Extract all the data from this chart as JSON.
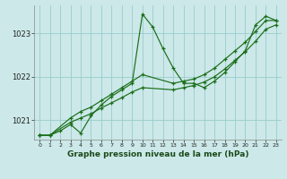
{
  "title": "Graphe pression niveau de la mer (hPa)",
  "background_color": "#cce8e8",
  "grid_color": "#99cccc",
  "line_color": "#1a6e1a",
  "xlim": [
    -0.5,
    23.5
  ],
  "ylim": [
    1020.55,
    1023.65
  ],
  "yticks": [
    1021,
    1022,
    1023
  ],
  "xticks": [
    0,
    1,
    2,
    3,
    4,
    5,
    6,
    7,
    8,
    9,
    10,
    11,
    12,
    13,
    14,
    15,
    16,
    17,
    18,
    19,
    20,
    21,
    22,
    23
  ],
  "series": [
    {
      "x": [
        0,
        1,
        2,
        3,
        4,
        5,
        6,
        7,
        8,
        9,
        10,
        11,
        12,
        13,
        14,
        15,
        16,
        17,
        18,
        19,
        20,
        21,
        22,
        23
      ],
      "y": [
        1020.65,
        1020.65,
        1020.75,
        1020.9,
        1020.7,
        1021.1,
        1021.35,
        1021.55,
        1021.7,
        1021.85,
        1023.45,
        1023.15,
        1022.65,
        1022.2,
        1021.85,
        1021.85,
        1021.75,
        1021.9,
        1022.1,
        1022.35,
        1022.6,
        1023.2,
        1023.4,
        1023.3
      ]
    },
    {
      "x": [
        0,
        1,
        3,
        4,
        5,
        6,
        7,
        8,
        9,
        10,
        13,
        14,
        15,
        16,
        17,
        18,
        19,
        20,
        21,
        22,
        23
      ],
      "y": [
        1020.65,
        1020.65,
        1021.05,
        1021.2,
        1021.3,
        1021.45,
        1021.6,
        1021.75,
        1021.9,
        1022.05,
        1021.85,
        1021.9,
        1021.95,
        1022.05,
        1022.2,
        1022.4,
        1022.6,
        1022.8,
        1023.05,
        1023.3,
        1023.3
      ]
    },
    {
      "x": [
        0,
        1,
        3,
        4,
        5,
        6,
        7,
        8,
        9,
        10,
        13,
        14,
        15,
        16,
        17,
        18,
        19,
        20,
        21,
        22,
        23
      ],
      "y": [
        1020.65,
        1020.65,
        1020.95,
        1021.05,
        1021.15,
        1021.28,
        1021.4,
        1021.52,
        1021.65,
        1021.75,
        1021.7,
        1021.75,
        1021.8,
        1021.88,
        1022.0,
        1022.18,
        1022.38,
        1022.58,
        1022.82,
        1023.1,
        1023.2
      ]
    }
  ]
}
